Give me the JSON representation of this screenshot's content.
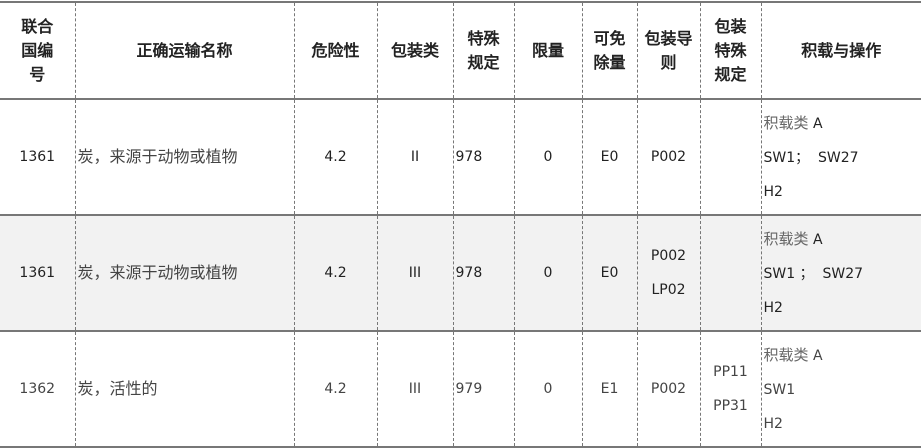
{
  "headers": [
    "联合国编号",
    "正确运输名称",
    "危险性",
    "包装类",
    "特殊规定",
    "限量",
    "可免除量",
    "包装导则",
    "包装特殊规定",
    "积载与操作"
  ],
  "rows": [
    {
      "un": "1361",
      "name": "炭，来源于动物或植物",
      "hazard": "4.2",
      "pg": "II",
      "sp": "978",
      "lq": "0",
      "eq": "E0",
      "pi": [
        "P002"
      ],
      "psp": [],
      "stow": {
        "cat": "积载类",
        "cat_val": "A",
        "sw": "SW1；  SW27",
        "h": "H2"
      }
    },
    {
      "un": "1361",
      "name": "炭，来源于动物或植物",
      "hazard": "4.2",
      "pg": "III",
      "sp": "978",
      "lq": "0",
      "eq": "E0",
      "pi": [
        "P002",
        "LP02"
      ],
      "psp": [],
      "stow": {
        "cat": "积载类",
        "cat_val": "A",
        "sw": "SW1 ；  SW27",
        "h": "H2"
      }
    },
    {
      "un": "1362",
      "name": "炭，活性的",
      "hazard": "4.2",
      "pg": "III",
      "sp": "979",
      "lq": "0",
      "eq": "E1",
      "pi": [
        "P002"
      ],
      "psp": [
        "PP11",
        "PP31"
      ],
      "stow": {
        "cat": "积载类",
        "cat_val": "A",
        "sw": "SW1",
        "h": "H2"
      }
    }
  ]
}
